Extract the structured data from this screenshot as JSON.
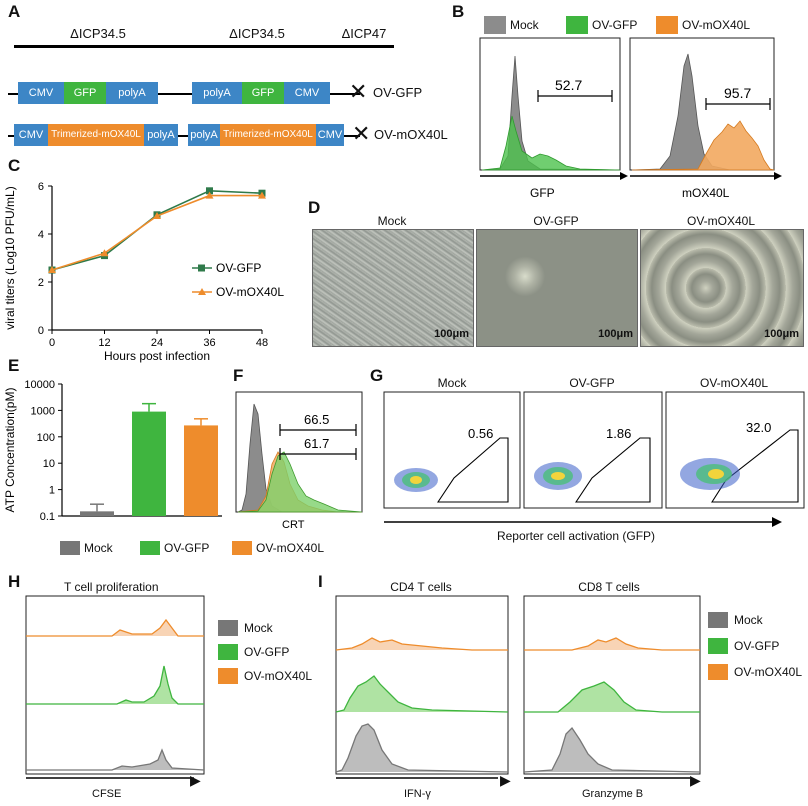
{
  "panels": {
    "A": {
      "label": "A",
      "deletions": [
        "ΔICP34.5",
        "ΔICP34.5",
        "ΔICP47"
      ],
      "constructs": [
        {
          "name": "OV-GFP",
          "left": [
            "CMV",
            "GFP",
            "polyA"
          ],
          "right": [
            "polyA",
            "GFP",
            "CMV"
          ]
        },
        {
          "name": "OV-mOX40L",
          "left": [
            "CMV",
            "Trimerized-mOX40L",
            "polyA"
          ],
          "right": [
            "polyA",
            "Trimerized-mOX40L",
            "CMV"
          ]
        }
      ]
    },
    "B": {
      "label": "B",
      "legend": [
        "Mock",
        "OV-GFP",
        "OV-mOX40L"
      ],
      "plots": [
        {
          "xlabel": "GFP",
          "gate_value": "52.7"
        },
        {
          "xlabel": "mOX40L",
          "gate_value": "95.7"
        }
      ]
    },
    "C": {
      "label": "C"
    },
    "D": {
      "label": "D",
      "images": [
        {
          "title": "Mock",
          "scale": "100μm"
        },
        {
          "title": "OV-GFP",
          "scale": "100μm"
        },
        {
          "title": "OV-mOX40L",
          "scale": "100μm"
        }
      ]
    },
    "E": {
      "label": "E",
      "legend": [
        "Mock",
        "OV-GFP",
        "OV-mOX40L"
      ]
    },
    "F": {
      "label": "F",
      "xlabel": "CRT",
      "gate_values": [
        "66.5",
        "61.7"
      ]
    },
    "G": {
      "label": "G",
      "xlabel": "Reporter cell activation (GFP)",
      "plots": [
        {
          "title": "Mock",
          "value": "0.56"
        },
        {
          "title": "OV-GFP",
          "value": "1.86"
        },
        {
          "title": "OV-mOX40L",
          "value": "32.0"
        }
      ]
    },
    "H": {
      "label": "H",
      "title": "T cell proliferation",
      "xlabel": "CFSE",
      "legend": [
        "Mock",
        "OV-GFP",
        "OV-mOX40L"
      ]
    },
    "I": {
      "label": "I",
      "plots": [
        {
          "title": "CD4 T cells",
          "xlabel": "IFN-γ"
        },
        {
          "title": "CD8 T cells",
          "xlabel": "Granzyme B"
        }
      ],
      "legend": [
        "Mock",
        "OV-GFP",
        "OV-mOX40L"
      ]
    }
  },
  "colors": {
    "mock": "#8c8c8c",
    "gfp": "#3fb53f",
    "ox40l": "#ee8c2c",
    "vector": "#3d86c6"
  },
  "chart_data": [
    {
      "type": "line",
      "panel": "C",
      "xlabel": "Hours post infection",
      "ylabel": "viral titers (Log10 PFU/mL)",
      "x": [
        0,
        12,
        24,
        36,
        48
      ],
      "xticks": [
        "0",
        "12",
        "24",
        "36",
        "48"
      ],
      "yticks": [
        "0",
        "2",
        "4",
        "6"
      ],
      "xlim": [
        0,
        48
      ],
      "ylim": [
        0,
        6
      ],
      "series": [
        {
          "name": "OV-GFP",
          "values": [
            2.5,
            3.1,
            4.8,
            5.8,
            5.7
          ]
        },
        {
          "name": "OV-mOX40L",
          "values": [
            2.5,
            3.2,
            4.75,
            5.6,
            5.6
          ]
        }
      ]
    },
    {
      "type": "bar",
      "panel": "E",
      "ylabel": "ATP Concentration(pM)",
      "yscale": "log",
      "yticks": [
        "0.1",
        "1",
        "10",
        "100",
        "1000",
        "10000"
      ],
      "ylim": [
        0.1,
        10000
      ],
      "categories": [
        "Mock",
        "OV-GFP",
        "OV-mOX40L"
      ],
      "values": [
        0.15,
        900,
        270
      ],
      "errors": [
        0.28,
        1800,
        480
      ]
    }
  ]
}
